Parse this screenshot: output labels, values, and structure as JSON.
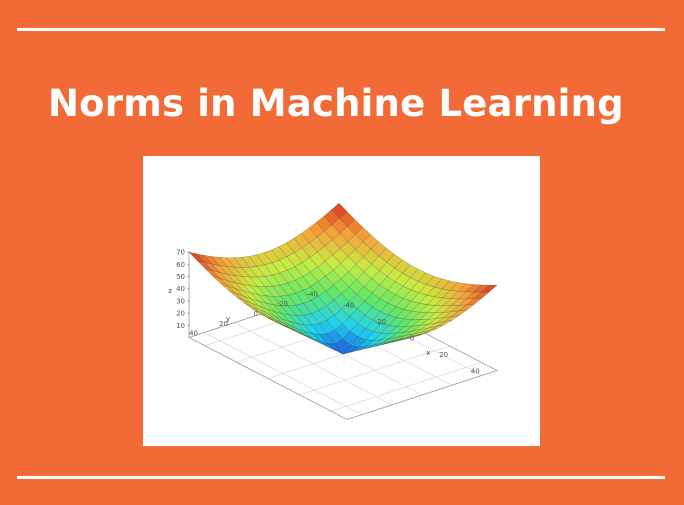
{
  "title": "Norms in Machine Learning",
  "colors": {
    "background": "#f26a35",
    "rule": "#ffffff",
    "title": "#ffffff",
    "figure_background": "#ffffff"
  },
  "chart_data": {
    "type": "surface",
    "axes": {
      "x": {
        "label": "x",
        "range": [
          -50,
          50
        ],
        "ticks": [
          "-40",
          "-20",
          "0",
          "20",
          "40"
        ]
      },
      "y": {
        "label": "y",
        "range": [
          -50,
          50
        ],
        "ticks": [
          "-40",
          "-20",
          "0",
          "20",
          "40"
        ]
      },
      "z": {
        "label": "z",
        "range": [
          0,
          70
        ],
        "ticks": [
          "10",
          "20",
          "30",
          "40",
          "50",
          "60",
          "70"
        ]
      }
    },
    "surface": {
      "x_range": [
        -50,
        50
      ],
      "y_range": [
        -50,
        50
      ],
      "grid_steps": 20,
      "z_min": 0,
      "z_max": 70,
      "colorscale": [
        "#1f56d6",
        "#1fd3f0",
        "#62e66a",
        "#c8ec43",
        "#f6a23a",
        "#d7301f"
      ]
    },
    "grid": true
  }
}
